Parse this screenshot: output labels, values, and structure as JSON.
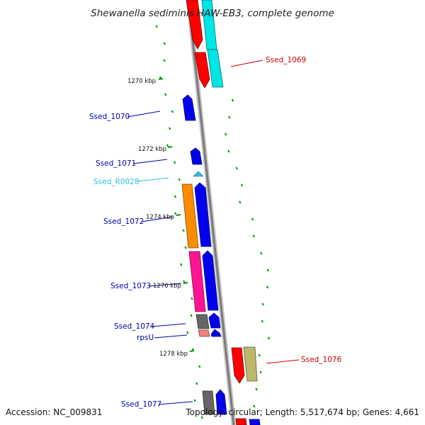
{
  "title": "Shewanella sediminis HAW-EB3, complete genome",
  "footer": {
    "accession": "Accession: NC_009831",
    "topology": "Topology: circular; Length: 5,517,674 bp; Genes: 4,661"
  },
  "ticks": [
    "1270 kbp",
    "1272 kbp",
    "1274 kbp",
    "1276 kbp",
    "1278 kbp"
  ],
  "genes": [
    {
      "name": "Ssed_1069",
      "color": "#cc0000"
    },
    {
      "name": "Ssed_1070",
      "color": "#0000aa"
    },
    {
      "name": "Ssed_1071",
      "color": "#0000aa"
    },
    {
      "name": "Ssed_R0028",
      "color": "#33bbdd"
    },
    {
      "name": "Ssed_1072",
      "color": "#0000aa"
    },
    {
      "name": "Ssed_1073",
      "color": "#0000aa"
    },
    {
      "name": "Ssed_1074",
      "color": "#0000aa"
    },
    {
      "name": "rpsU",
      "color": "#0000aa"
    },
    {
      "name": "Ssed_1076",
      "color": "#cc0000"
    },
    {
      "name": "Ssed_1077",
      "color": "#0000aa"
    }
  ],
  "feature_colors": {
    "red": "#ff0000",
    "cyan": "#00e5e5",
    "blue": "#0000ee",
    "orange": "#ff8c00",
    "pink": "#ff1493",
    "gray": "#666666",
    "salmon": "#f08080",
    "khaki": "#bdb76b",
    "rna": "#33bbdd",
    "gc_skew": "#009900",
    "backbone": "#888888"
  }
}
